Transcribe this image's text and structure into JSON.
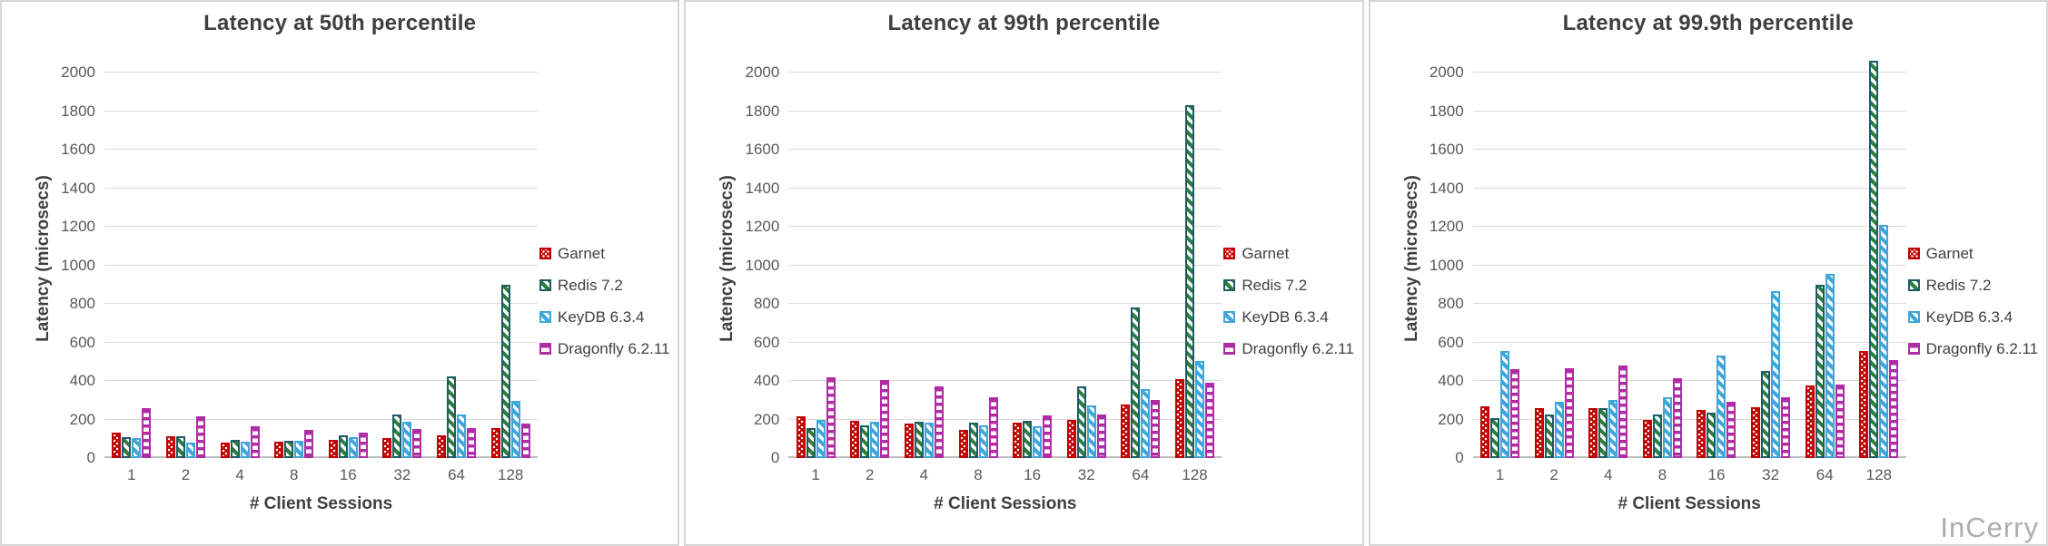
{
  "watermark": "InCerry",
  "palette": {
    "garnet": "#c00000",
    "redis_border": "#1e5b68",
    "redis_stripe": "#2e7d3a",
    "keydb": "#3fa6da",
    "dragonfly": "#b02ca5",
    "gridline": "#d9d9d9",
    "axis_line": "#bfbfbf",
    "tick_text": "#595959",
    "title_text": "#3f3f3f"
  },
  "series_meta": [
    {
      "name": "Garnet",
      "pattern": "dots",
      "color": "#c00000",
      "border": "#c00000"
    },
    {
      "name": "Redis 7.2",
      "pattern": "diagonal",
      "color": "#2e7d3a",
      "border": "#1e5b68"
    },
    {
      "name": "KeyDB 6.3.4",
      "pattern": "diagonal",
      "color": "#3fa6da",
      "border": "#3fa6da"
    },
    {
      "name": "Dragonfly 6.2.11",
      "pattern": "horizontal",
      "color": "#b02ca5",
      "border": "#b02ca5"
    }
  ],
  "chart_data": [
    {
      "type": "bar",
      "title": "Latency at 50th percentile",
      "xlabel": "# Client Sessions",
      "ylabel": "Latency (microsecs)",
      "ylim": [
        0,
        2000
      ],
      "ytick_step": 200,
      "yticks": [
        0,
        200,
        400,
        600,
        800,
        1000,
        1200,
        1400,
        1600,
        1800,
        2000
      ],
      "grid": true,
      "legend_position": "right",
      "categories": [
        "1",
        "2",
        "4",
        "8",
        "16",
        "32",
        "64",
        "128"
      ],
      "series": [
        {
          "name": "Garnet",
          "values": [
            130,
            115,
            80,
            85,
            95,
            105,
            120,
            155
          ]
        },
        {
          "name": "Redis 7.2",
          "values": [
            110,
            115,
            95,
            90,
            120,
            225,
            425,
            900
          ]
        },
        {
          "name": "KeyDB 6.3.4",
          "values": [
            105,
            80,
            85,
            90,
            110,
            190,
            225,
            295
          ]
        },
        {
          "name": "Dragonfly 6.2.11",
          "values": [
            260,
            215,
            165,
            145,
            130,
            150,
            155,
            180
          ]
        }
      ]
    },
    {
      "type": "bar",
      "title": "Latency at 99th percentile",
      "xlabel": "# Client Sessions",
      "ylabel": "Latency (microsecs)",
      "ylim": [
        0,
        2000
      ],
      "ytick_step": 200,
      "yticks": [
        0,
        200,
        400,
        600,
        800,
        1000,
        1200,
        1400,
        1600,
        1800,
        2000
      ],
      "grid": true,
      "legend_position": "right",
      "categories": [
        "1",
        "2",
        "4",
        "8",
        "16",
        "32",
        "64",
        "128"
      ],
      "series": [
        {
          "name": "Garnet",
          "values": [
            215,
            195,
            180,
            145,
            185,
            200,
            280,
            410
          ]
        },
        {
          "name": "Redis 7.2",
          "values": [
            155,
            170,
            190,
            185,
            195,
            370,
            780,
            1830
          ]
        },
        {
          "name": "KeyDB 6.3.4",
          "values": [
            200,
            190,
            185,
            170,
            165,
            275,
            360,
            505
          ]
        },
        {
          "name": "Dragonfly 6.2.11",
          "values": [
            420,
            405,
            370,
            315,
            220,
            225,
            300,
            390
          ]
        }
      ]
    },
    {
      "type": "bar",
      "title": "Latency at 99.9th percentile",
      "xlabel": "# Client Sessions",
      "ylabel": "Latency (microsecs)",
      "ylim": [
        0,
        2000
      ],
      "ytick_step": 200,
      "yticks": [
        0,
        200,
        400,
        600,
        800,
        1000,
        1200,
        1400,
        1600,
        1800,
        2000
      ],
      "grid": true,
      "legend_position": "right",
      "categories": [
        "1",
        "2",
        "4",
        "8",
        "16",
        "32",
        "64",
        "128"
      ],
      "series": [
        {
          "name": "Garnet",
          "values": [
            270,
            260,
            260,
            200,
            250,
            265,
            375,
            555
          ]
        },
        {
          "name": "Redis 7.2",
          "values": [
            205,
            225,
            260,
            225,
            235,
            450,
            900,
            2060
          ]
        },
        {
          "name": "KeyDB 6.3.4",
          "values": [
            555,
            290,
            300,
            315,
            530,
            865,
            955,
            1210
          ]
        },
        {
          "name": "Dragonfly 6.2.11",
          "values": [
            460,
            465,
            480,
            415,
            290,
            315,
            380,
            510
          ]
        }
      ]
    }
  ]
}
